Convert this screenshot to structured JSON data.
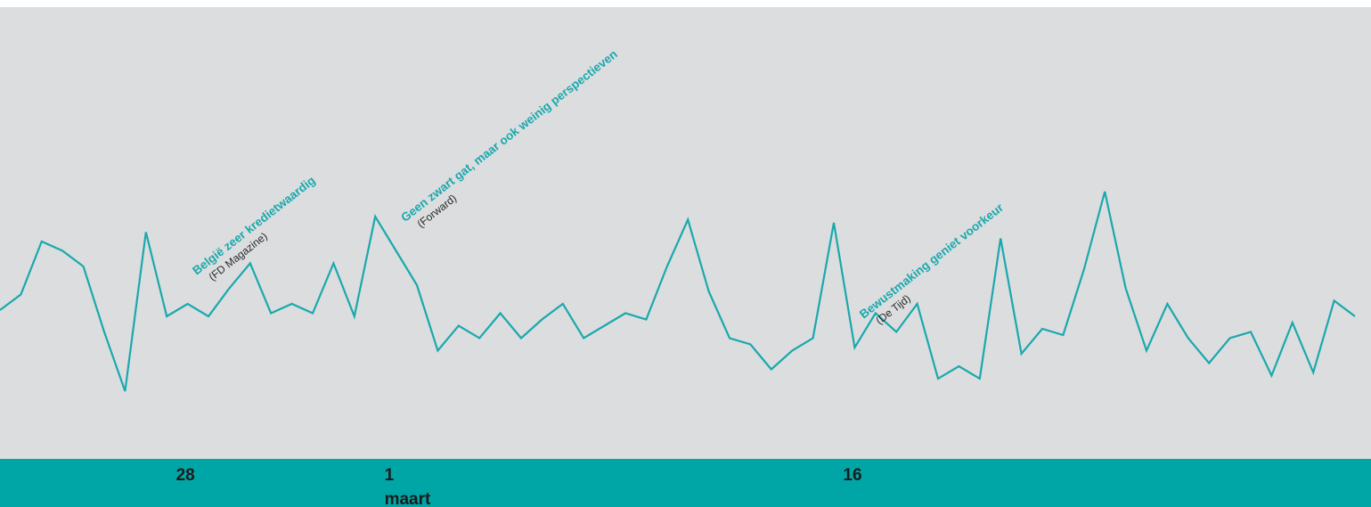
{
  "chart_data": {
    "type": "line",
    "title": "",
    "xlabel": "",
    "ylabel": "",
    "x_tick_labels": [
      {
        "label": "28",
        "sublabel": "",
        "index": 9
      },
      {
        "label": "1",
        "sublabel": "maart",
        "index": 19
      },
      {
        "label": "16",
        "sublabel": "",
        "index": 41
      }
    ],
    "series": [
      {
        "color": "#19a9ad",
        "values": [
          48,
          53,
          70,
          67,
          62,
          41,
          22,
          73,
          46,
          50,
          46,
          55,
          63,
          47,
          50,
          47,
          63,
          46,
          78,
          67,
          56,
          35,
          43,
          39,
          47,
          39,
          45,
          50,
          39,
          43,
          47,
          45,
          62,
          77,
          54,
          39,
          37,
          29,
          35,
          39,
          76,
          36,
          47,
          41,
          50,
          26,
          30,
          26,
          71,
          34,
          42,
          40,
          61,
          86,
          55,
          35,
          50,
          39,
          31,
          39,
          41,
          27,
          44,
          28,
          51,
          46
        ]
      }
    ],
    "ylim": [
      0,
      100
    ],
    "annotations": [
      {
        "title": "België zeer kredietwaardig",
        "source": "(FD Magazine)",
        "index": 9
      },
      {
        "title": "Geen zwart gat, maar ook weinig perspectieven",
        "source": "(Forward)",
        "index": 19
      },
      {
        "title": "Bewustmaking geniet voorkeur",
        "source": "(De Tijd)",
        "index": 41
      }
    ],
    "grid": false,
    "legend": "none"
  },
  "colors": {
    "background": "#dcdddf",
    "band": "#00a6a6",
    "line": "#19a9ad",
    "annotation_title": "#19a9ad",
    "tick_text": "#1b1b1b"
  }
}
